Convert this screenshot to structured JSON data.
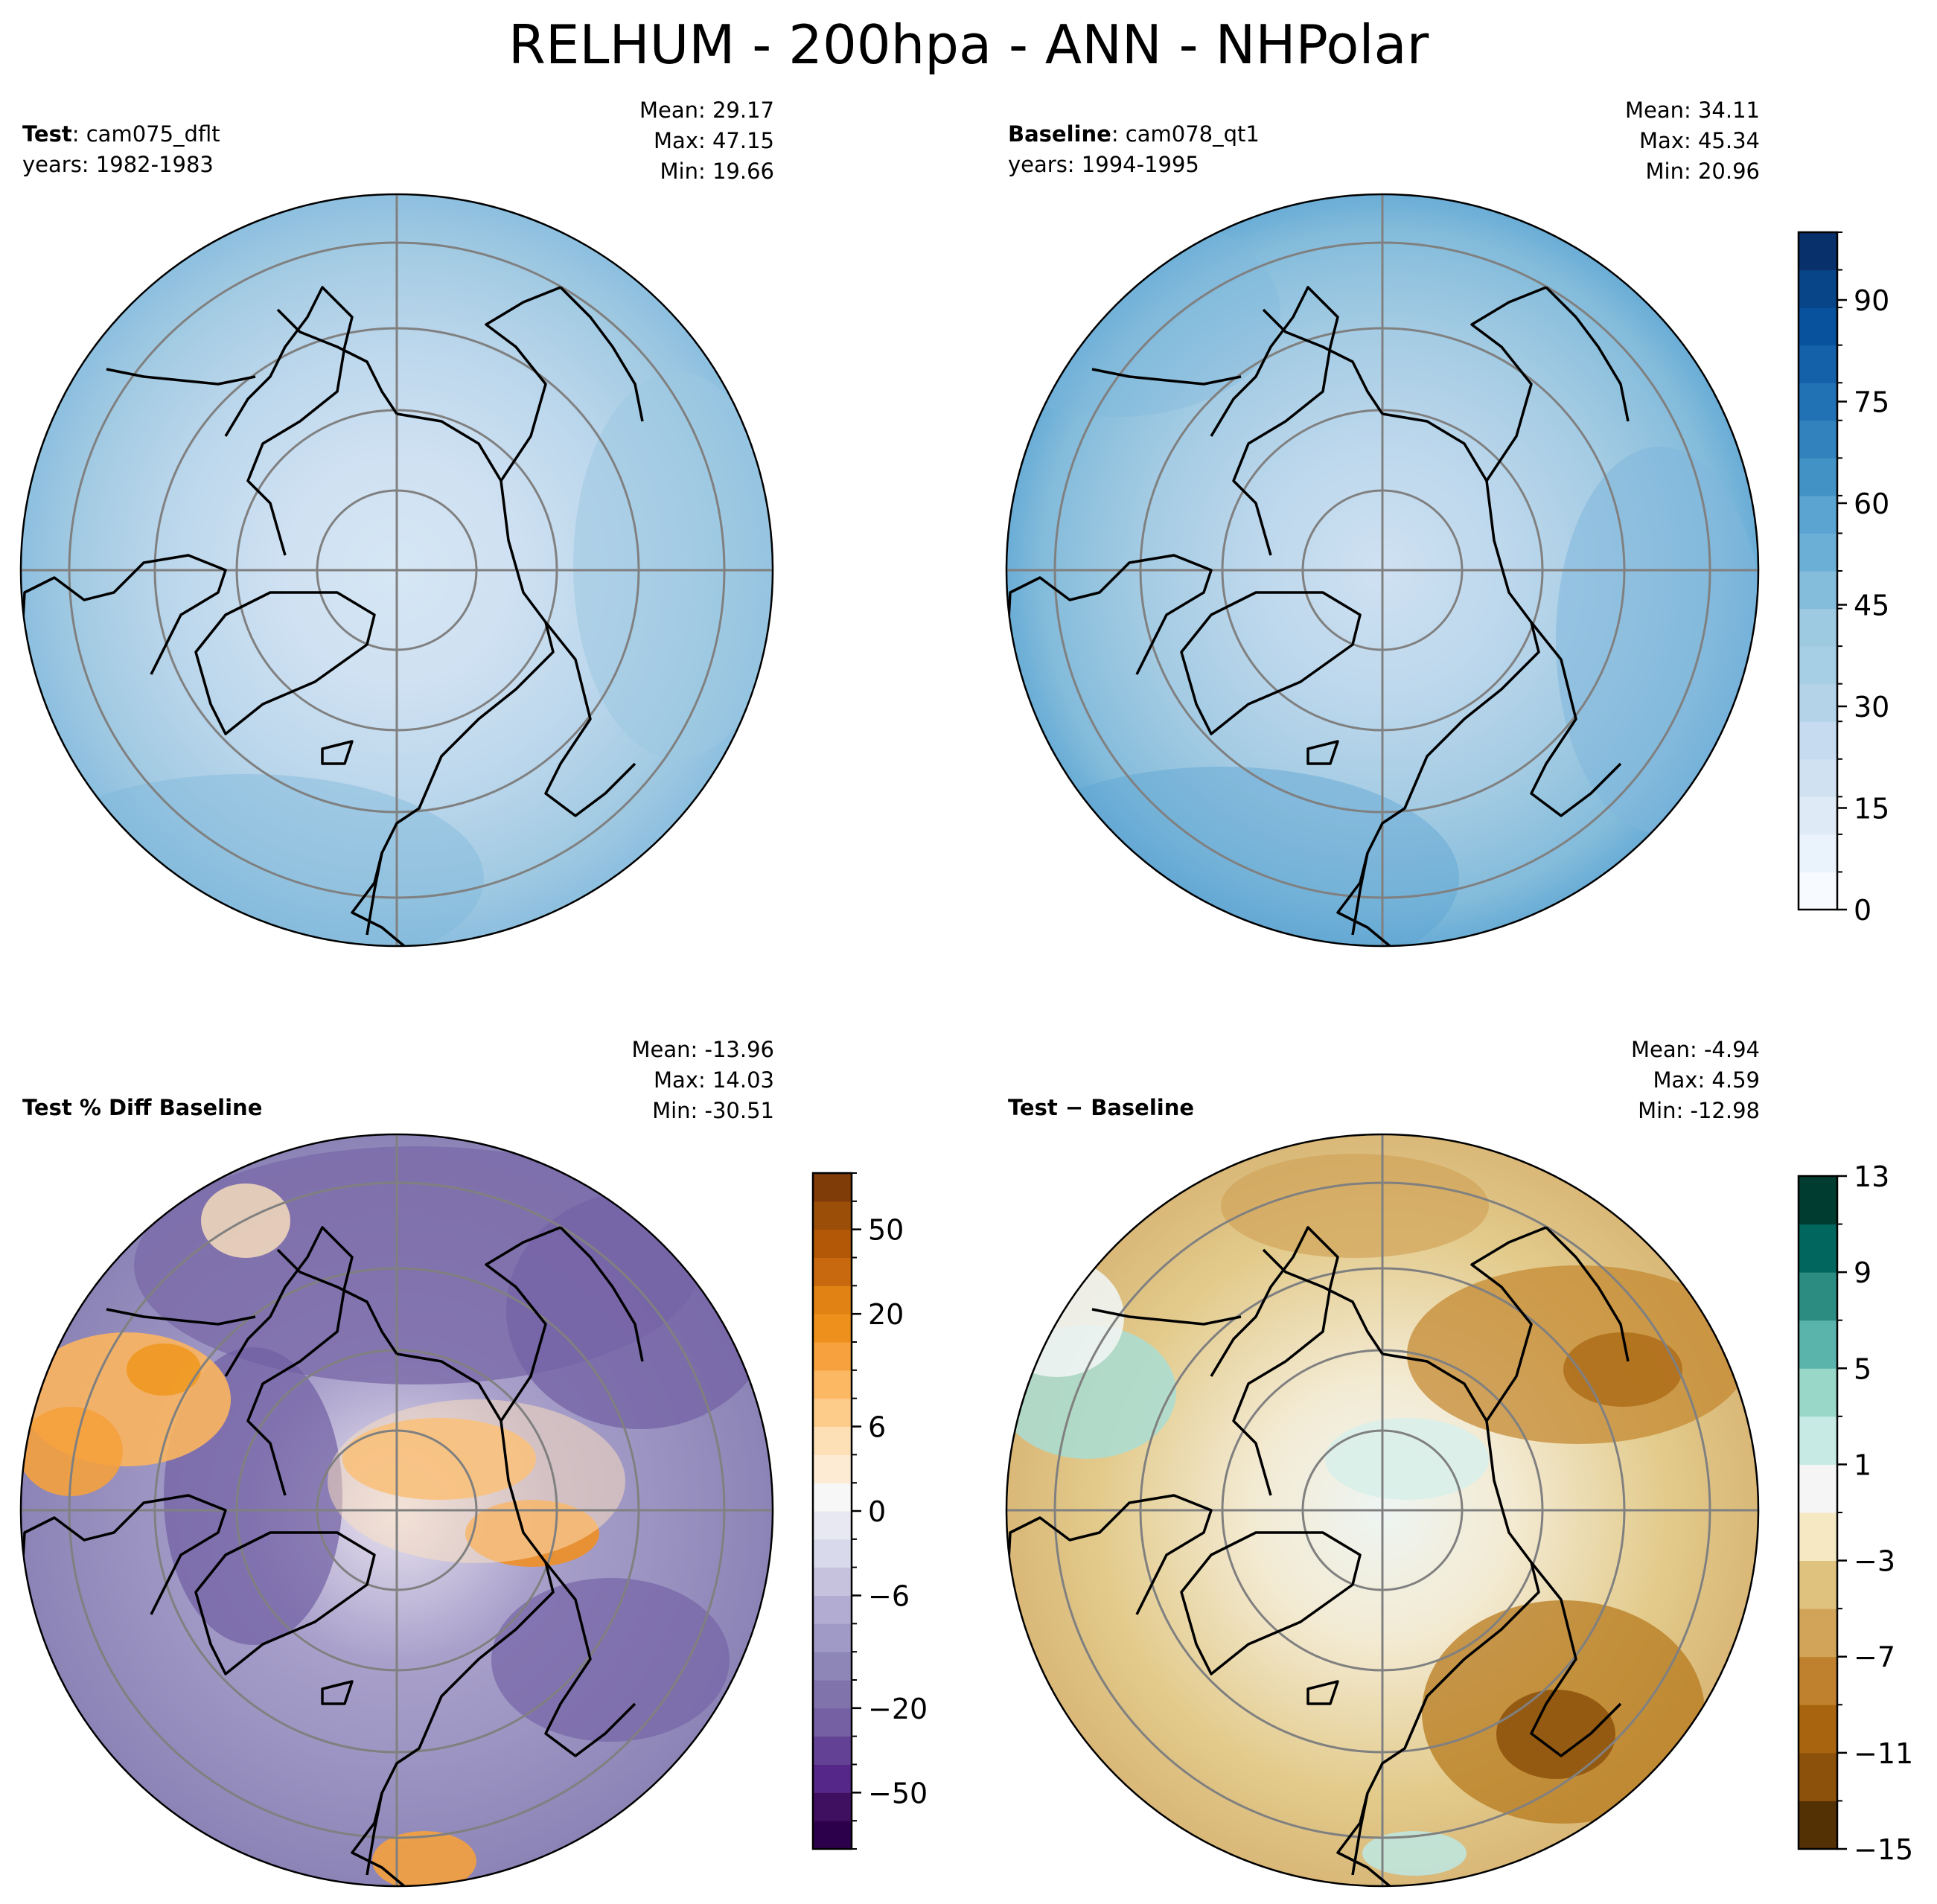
{
  "title": "RELHUM - 200hpa - ANN - NHPolar",
  "panels": [
    {
      "name_bold": "Test",
      "name_rest": ": cam075_dflt",
      "years": "years: 1982-1983",
      "stats": [
        "Mean: 29.17",
        "Max: 47.15",
        "Min: 19.66"
      ]
    },
    {
      "name_bold": "Baseline",
      "name_rest": ": cam078_qt1",
      "years": "years: 1994-1995",
      "stats": [
        "Mean: 34.11",
        "Max: 45.34",
        "Min: 20.96"
      ]
    },
    {
      "name_bold": "Test % Diff Baseline",
      "name_rest": "",
      "years": "",
      "stats": [
        "Mean: -13.96",
        "Max: 14.03",
        "Min: -30.51"
      ]
    },
    {
      "name_bold": "Test − Baseline",
      "name_rest": "",
      "years": "",
      "stats": [
        "Mean: -4.94",
        "Max:  4.59",
        "Min: -12.98"
      ]
    }
  ],
  "chart_data": [
    {
      "type": "heatmap",
      "title": "Test: cam075_dflt",
      "projection": "north-polar-stereographic",
      "stats": {
        "mean": 29.17,
        "max": 47.15,
        "min": 19.66
      },
      "colorscale": "Blues",
      "levels": [
        0,
        100
      ]
    },
    {
      "type": "heatmap",
      "title": "Baseline: cam078_qt1",
      "projection": "north-polar-stereographic",
      "stats": {
        "mean": 34.11,
        "max": 45.34,
        "min": 20.96
      },
      "colorbar": {
        "ticks": [
          "0",
          "15",
          "30",
          "45",
          "60",
          "75",
          "90"
        ],
        "tick_values": [
          0,
          15,
          30,
          45,
          60,
          75,
          90
        ],
        "range": [
          0,
          100
        ],
        "colors": [
          "#f7fbff",
          "#eaf2fb",
          "#deebf7",
          "#d0e2f2",
          "#c6dbef",
          "#b4d3e9",
          "#a6cee4",
          "#9ecae1",
          "#84bcdb",
          "#6baed6",
          "#5ba3d0",
          "#4292c6",
          "#3182bd",
          "#2171b5",
          "#1561a9",
          "#08519c",
          "#084488",
          "#08306b"
        ]
      }
    },
    {
      "type": "heatmap",
      "title": "Test % Diff Baseline",
      "projection": "north-polar-stereographic",
      "stats": {
        "mean": -13.96,
        "max": 14.03,
        "min": -30.51
      },
      "colorbar": {
        "ticks": [
          "−50",
          "−20",
          "−6",
          "0",
          "6",
          "20",
          "50"
        ],
        "levels": [
          -100,
          -70,
          -50,
          -40,
          -30,
          -20,
          -15,
          -10,
          -8,
          -6,
          -4,
          -2,
          0,
          2,
          4,
          6,
          8,
          10,
          15,
          20,
          30,
          40,
          50,
          70,
          100
        ],
        "colors": [
          "#2d004b",
          "#3f0f60",
          "#542788",
          "#634295",
          "#7460a2",
          "#8073ac",
          "#8f86b8",
          "#9f9ac6",
          "#b2abd2",
          "#c6c2de",
          "#d8daeb",
          "#e8e8f2",
          "#f7f7f7",
          "#fdecd3",
          "#fee0b6",
          "#fdcc8a",
          "#fdb863",
          "#f6a13d",
          "#ee901c",
          "#e08214",
          "#c9690f",
          "#b35806",
          "#9a4e08",
          "#7f3b08"
        ]
      }
    },
    {
      "type": "heatmap",
      "title": "Test − Baseline",
      "projection": "north-polar-stereographic",
      "stats": {
        "mean": -4.94,
        "max": 4.59,
        "min": -12.98
      },
      "colorbar": {
        "ticks": [
          "−15",
          "−11",
          "−7",
          "−3",
          "1",
          "5",
          "9",
          "13"
        ],
        "levels": [
          -15,
          -13,
          -11,
          -9,
          -7,
          -5,
          -3,
          -1,
          1,
          3,
          5,
          7,
          9,
          11,
          13
        ],
        "colors": [
          "#543005",
          "#8c510a",
          "#a8640f",
          "#bf812d",
          "#d2a45a",
          "#dfc27d",
          "#f6e8c3",
          "#f5f5f5",
          "#c7eae5",
          "#99d8c9",
          "#5ab4ac",
          "#2d8c82",
          "#01665e",
          "#003c30"
        ]
      }
    }
  ]
}
